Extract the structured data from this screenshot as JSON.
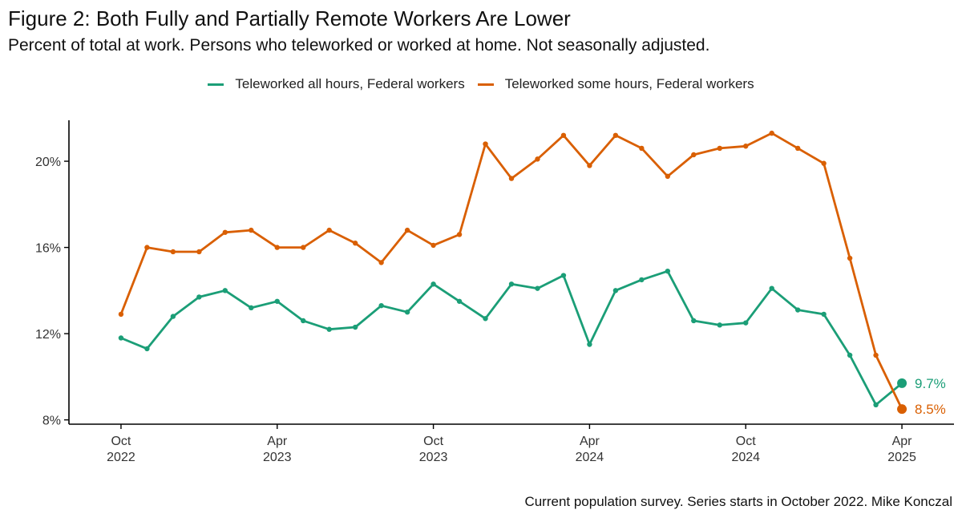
{
  "chart_data": {
    "type": "line",
    "title": "Figure 2: Both Fully and Partially Remote Workers Are Lower",
    "subtitle": "Percent of total at work. Persons who teleworked or worked at home. Not seasonally adjusted.",
    "caption": "Current population survey. Series starts in October 2022. Mike Konczal",
    "xlabel": "",
    "ylabel": "",
    "x": [
      "2022-10",
      "2022-11",
      "2022-12",
      "2023-01",
      "2023-02",
      "2023-03",
      "2023-04",
      "2023-05",
      "2023-06",
      "2023-07",
      "2023-08",
      "2023-09",
      "2023-10",
      "2023-11",
      "2023-12",
      "2024-01",
      "2024-02",
      "2024-03",
      "2024-04",
      "2024-05",
      "2024-06",
      "2024-07",
      "2024-08",
      "2024-09",
      "2024-10",
      "2024-11",
      "2024-12",
      "2025-01",
      "2025-02",
      "2025-03",
      "2025-04"
    ],
    "series": [
      {
        "name": "Teleworked all hours, Federal workers",
        "color": "#1b9e77",
        "values": [
          11.8,
          11.3,
          12.8,
          13.7,
          14.0,
          13.2,
          13.5,
          12.6,
          12.2,
          12.3,
          13.3,
          13.0,
          14.3,
          13.5,
          12.7,
          14.3,
          14.1,
          14.7,
          11.5,
          14.0,
          14.5,
          14.9,
          12.6,
          12.4,
          12.5,
          14.1,
          13.1,
          12.9,
          11.0,
          8.7,
          9.7
        ],
        "end_label": "9.7%"
      },
      {
        "name": "Teleworked some hours, Federal workers",
        "color": "#d95f02",
        "values": [
          12.9,
          16.0,
          15.8,
          15.8,
          16.7,
          16.8,
          16.0,
          16.0,
          16.8,
          16.2,
          15.3,
          16.8,
          16.1,
          16.6,
          20.8,
          19.2,
          20.1,
          21.2,
          19.8,
          21.2,
          20.6,
          19.3,
          20.3,
          20.6,
          20.7,
          21.3,
          20.6,
          19.9,
          15.5,
          11.0,
          8.5
        ],
        "end_label": "8.5%"
      }
    ],
    "y_ticks": [
      "8%",
      "12%",
      "16%",
      "20%"
    ],
    "y_tick_values": [
      8,
      12,
      16,
      20
    ],
    "ylim": [
      7.8,
      21.9
    ],
    "x_ticks": [
      {
        "month": "Oct",
        "year": "2022",
        "x": "2022-10"
      },
      {
        "month": "Apr",
        "year": "2023",
        "x": "2023-04"
      },
      {
        "month": "Oct",
        "year": "2023",
        "x": "2023-10"
      },
      {
        "month": "Apr",
        "year": "2024",
        "x": "2024-04"
      },
      {
        "month": "Oct",
        "year": "2024",
        "x": "2024-10"
      },
      {
        "month": "Apr",
        "year": "2025",
        "x": "2025-04"
      }
    ],
    "xlim": [
      "2022-08",
      "2025-06"
    ],
    "legend_position": "top",
    "grid": false
  }
}
